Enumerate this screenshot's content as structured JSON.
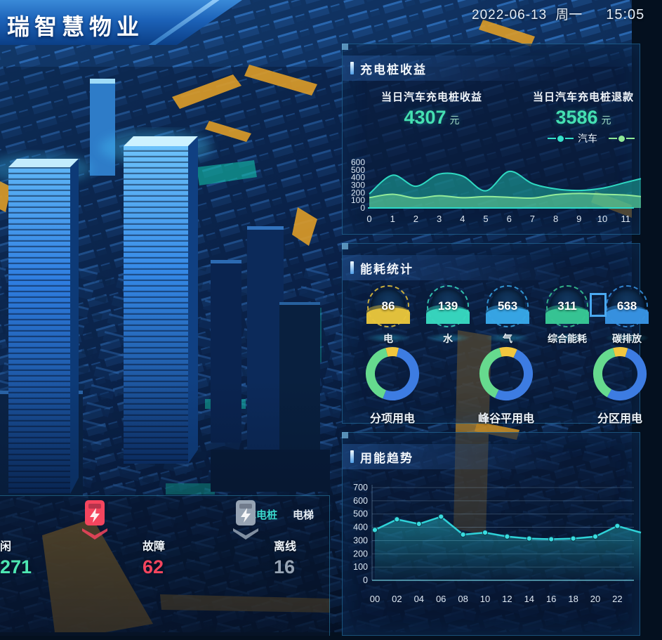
{
  "header": {
    "title": "瑞智慧物业",
    "date": "2022-06-13",
    "weekday": "周一",
    "time": "15:05"
  },
  "charging_panel": {
    "title": "充电桩收益",
    "stats": [
      {
        "label": "当日汽车充电桩收益",
        "value": "4307",
        "unit": "元"
      },
      {
        "label": "当日汽车充电桩退款",
        "value": "3586",
        "unit": "元"
      }
    ],
    "legend": [
      {
        "label": "汽车",
        "color": "#35e0c8"
      },
      {
        "label": "",
        "color": "#8fe996"
      }
    ]
  },
  "energy_panel": {
    "title": "能耗统计",
    "gauges": [
      {
        "value": "86",
        "label": "电",
        "color": "#e8c53c"
      },
      {
        "value": "139",
        "label": "水",
        "color": "#38d8c0"
      },
      {
        "value": "563",
        "label": "气",
        "color": "#38a8e8"
      },
      {
        "value": "311",
        "label": "综合能耗",
        "color": "#38c896"
      },
      {
        "value": "638",
        "label": "碳排放",
        "color": "#3894e4"
      }
    ],
    "donuts": [
      {
        "label": "分项用电",
        "segments": [
          {
            "color": "#f2c63e",
            "value": 8
          },
          {
            "color": "#3d7ce2",
            "value": 52
          },
          {
            "color": "#66da8e",
            "value": 40
          }
        ]
      },
      {
        "label": "峰谷平用电",
        "segments": [
          {
            "color": "#f2c63e",
            "value": 11
          },
          {
            "color": "#3d7ce2",
            "value": 50
          },
          {
            "color": "#66da8e",
            "value": 39
          }
        ]
      },
      {
        "label": "分区用电",
        "segments": [
          {
            "color": "#f2c63e",
            "value": 9
          },
          {
            "color": "#3d7ce2",
            "value": 53
          },
          {
            "color": "#66da8e",
            "value": 38
          }
        ]
      }
    ]
  },
  "trend_panel": {
    "title": "用能趋势"
  },
  "device_panel": {
    "tabs": [
      {
        "label": "充电桩",
        "active": true
      },
      {
        "label": "电梯",
        "active": false
      }
    ],
    "items": [
      {
        "label": "闲",
        "value": "271",
        "color": "#4de6b2",
        "icon": "none"
      },
      {
        "label": "故障",
        "value": "62",
        "color": "#f4455e",
        "icon": "charging-pile"
      },
      {
        "label": "离线",
        "value": "16",
        "color": "#97a4b4",
        "icon": "charging-pile"
      }
    ]
  },
  "chart_data": [
    {
      "id": "charging",
      "type": "area",
      "title": "充电桩收益",
      "xlabels": [
        "0",
        "1",
        "2",
        "3",
        "4",
        "5",
        "6",
        "7",
        "8",
        "9",
        "10",
        "11"
      ],
      "ylim": [
        0,
        600
      ],
      "yticks": [
        0,
        100,
        200,
        300,
        400,
        500,
        600
      ],
      "grid": false,
      "legend_position": "top-right",
      "series": [
        {
          "name": "汽车",
          "color": "#2fd9c2",
          "fill": "rgba(32,190,170,0.5)",
          "values": [
            185,
            430,
            285,
            445,
            420,
            225,
            480,
            320,
            250,
            230,
            260,
            335
          ],
          "edge_value": 385
        },
        {
          "name": "",
          "color": "#93eb9a",
          "fill": "rgba(110,216,150,0.5)",
          "values": [
            135,
            180,
            130,
            160,
            135,
            150,
            140,
            130,
            175,
            190,
            180,
            170
          ],
          "edge_value": 150
        }
      ]
    },
    {
      "id": "trend",
      "type": "line",
      "title": "用能趋势",
      "categories": [
        "00",
        "02",
        "04",
        "06",
        "08",
        "10",
        "12",
        "14",
        "16",
        "18",
        "20",
        "22"
      ],
      "ylim": [
        0,
        700
      ],
      "yticks": [
        0,
        100,
        200,
        300,
        400,
        500,
        600,
        700
      ],
      "grid": true,
      "series": [
        {
          "name": "充电桩",
          "color": "#2fd2d8",
          "values": [
            380,
            460,
            425,
            480,
            345,
            360,
            330,
            315,
            310,
            315,
            330,
            410
          ],
          "edge_value": 360
        }
      ]
    }
  ]
}
